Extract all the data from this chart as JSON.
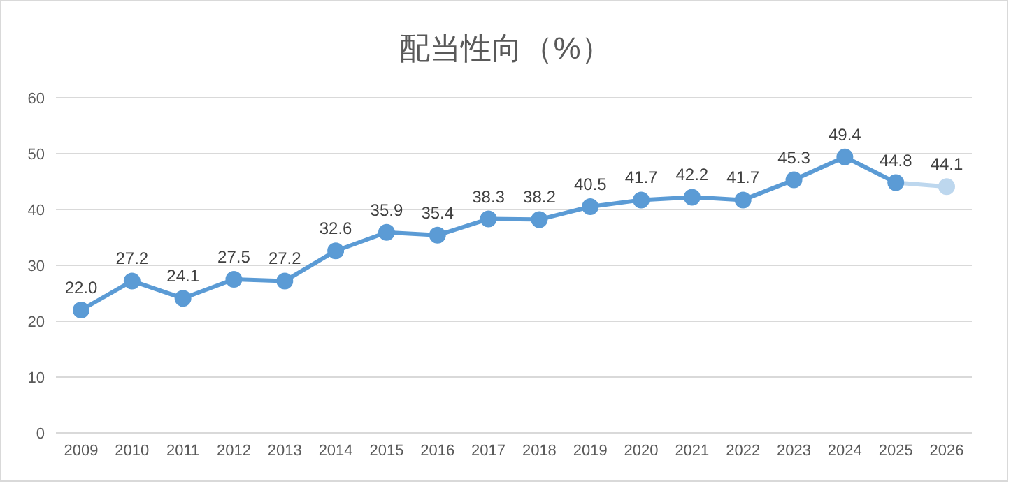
{
  "chart_data": {
    "type": "line",
    "title": "配当性向（%）",
    "categories": [
      "2009",
      "2010",
      "2011",
      "2012",
      "2013",
      "2014",
      "2015",
      "2016",
      "2017",
      "2018",
      "2019",
      "2020",
      "2021",
      "2022",
      "2023",
      "2024",
      "2025",
      "2026"
    ],
    "series": [
      {
        "values": [
          22.0,
          27.2,
          24.1,
          27.5,
          27.2,
          32.6,
          35.9,
          35.4,
          38.3,
          38.2,
          40.5,
          41.7,
          42.2,
          41.7,
          45.3,
          49.4,
          44.8,
          44.1
        ],
        "colors": [
          "#5b9bd5",
          "#5b9bd5",
          "#5b9bd5",
          "#5b9bd5",
          "#5b9bd5",
          "#5b9bd5",
          "#5b9bd5",
          "#5b9bd5",
          "#5b9bd5",
          "#5b9bd5",
          "#5b9bd5",
          "#5b9bd5",
          "#5b9bd5",
          "#5b9bd5",
          "#5b9bd5",
          "#5b9bd5",
          "#5b9bd5",
          "#bdd7ee"
        ],
        "value_labels": [
          "22.0",
          "27.2",
          "24.1",
          "27.5",
          "27.2",
          "32.6",
          "35.9",
          "35.4",
          "38.3",
          "38.2",
          "40.5",
          "41.7",
          "42.2",
          "41.7",
          "45.3",
          "49.4",
          "44.8",
          "44.1"
        ]
      }
    ],
    "ylim": [
      0,
      60
    ],
    "yticks": [
      0,
      10,
      20,
      30,
      40,
      50,
      60
    ],
    "grid": "y",
    "legend": false,
    "marker": "circle",
    "line_style": "solid"
  }
}
